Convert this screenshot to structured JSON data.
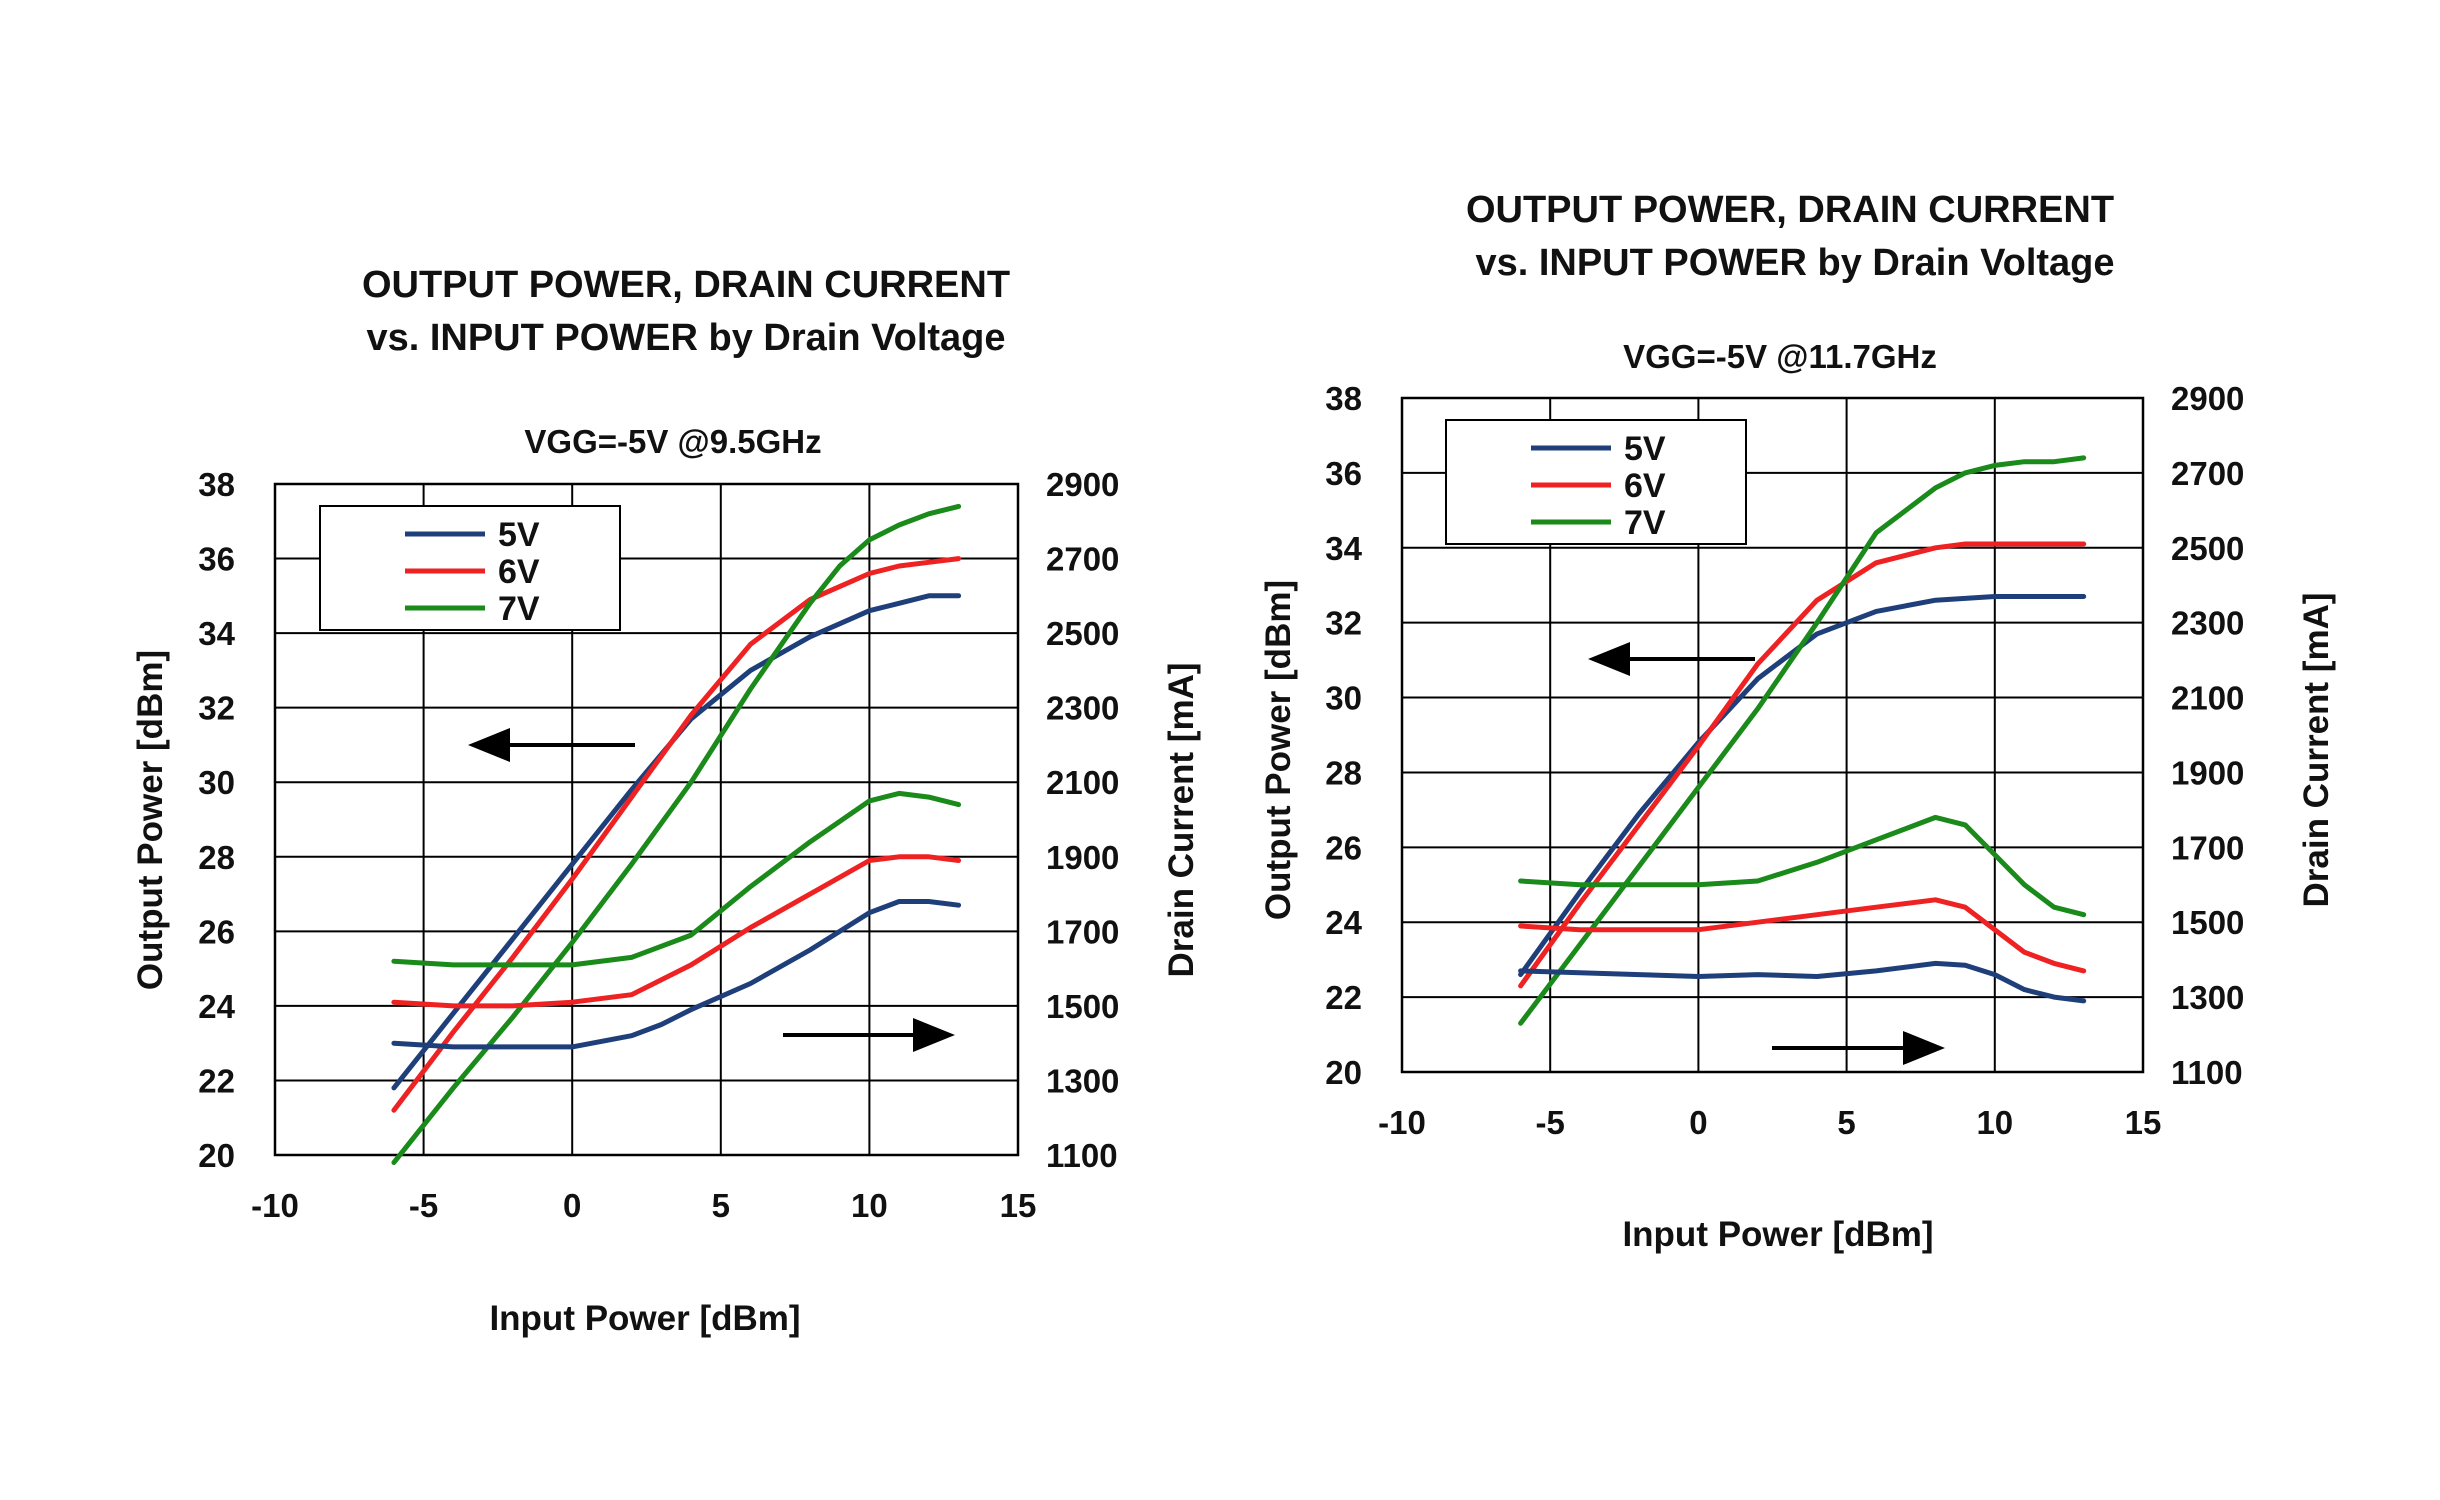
{
  "chart_data": [
    {
      "type": "line",
      "title": "OUTPUT POWER, DRAIN CURRENT",
      "subtitle": "vs. INPUT POWER by Drain Voltage",
      "condition": "VGG=-5V @9.5GHz",
      "xlabel": "Input Power [dBm]",
      "ylabel": "Output Power [dBm]",
      "y2label": "Drain Current [mA]",
      "xlim": [
        -10,
        15
      ],
      "ylim": [
        20,
        38
      ],
      "y2lim": [
        1100,
        2900
      ],
      "xticks": [
        "-10",
        "-5",
        "0",
        "5",
        "10",
        "15"
      ],
      "yticks": [
        "20",
        "22",
        "24",
        "26",
        "28",
        "30",
        "32",
        "34",
        "36",
        "38"
      ],
      "y2ticks": [
        "1100",
        "1300",
        "1500",
        "1700",
        "1900",
        "2100",
        "2300",
        "2500",
        "2700",
        "2900"
      ],
      "grid": true,
      "legend": "top-left",
      "arrows": [
        "left",
        "right"
      ],
      "series": [
        {
          "name": "5V",
          "axis": "left",
          "color": "#1f3f7a",
          "x": [
            -6,
            -4,
            -2,
            0,
            2,
            4,
            6,
            8,
            10,
            11,
            12,
            13
          ],
          "y": [
            21.8,
            23.8,
            25.8,
            27.8,
            29.8,
            31.7,
            33.0,
            33.9,
            34.6,
            34.8,
            35.0,
            35.0
          ]
        },
        {
          "name": "6V",
          "axis": "left",
          "color": "#ee2222",
          "x": [
            -6,
            -4,
            -2,
            0,
            2,
            4,
            6,
            8,
            10,
            11,
            12,
            13
          ],
          "y": [
            21.2,
            23.3,
            25.3,
            27.4,
            29.6,
            31.8,
            33.7,
            34.9,
            35.6,
            35.8,
            35.9,
            36.0
          ]
        },
        {
          "name": "7V",
          "axis": "left",
          "color": "#1a8a1a",
          "x": [
            -6,
            -4,
            -2,
            0,
            2,
            4,
            6,
            8,
            9,
            10,
            11,
            12,
            13
          ],
          "y": [
            19.8,
            21.8,
            23.7,
            25.7,
            27.8,
            30.0,
            32.5,
            34.8,
            35.8,
            36.5,
            36.9,
            37.2,
            37.4
          ]
        },
        {
          "name": "5V",
          "axis": "right",
          "color": "#1f3f7a",
          "x": [
            -6,
            -4,
            -2,
            0,
            2,
            3,
            4,
            6,
            8,
            10,
            11,
            12,
            13
          ],
          "y": [
            1400,
            1390,
            1390,
            1390,
            1420,
            1450,
            1490,
            1560,
            1650,
            1750,
            1780,
            1780,
            1770
          ]
        },
        {
          "name": "6V",
          "axis": "right",
          "color": "#ee2222",
          "x": [
            -6,
            -4,
            -2,
            0,
            2,
            4,
            6,
            8,
            10,
            11,
            12,
            13
          ],
          "y": [
            1510,
            1500,
            1500,
            1510,
            1530,
            1610,
            1710,
            1800,
            1890,
            1900,
            1900,
            1890
          ]
        },
        {
          "name": "7V",
          "axis": "right",
          "color": "#1a8a1a",
          "x": [
            -6,
            -4,
            -2,
            0,
            2,
            4,
            6,
            8,
            10,
            11,
            12,
            13
          ],
          "y": [
            1620,
            1610,
            1610,
            1610,
            1630,
            1690,
            1820,
            1940,
            2050,
            2070,
            2060,
            2040
          ]
        }
      ]
    },
    {
      "type": "line",
      "title": "OUTPUT POWER, DRAIN CURRENT",
      "subtitle": "vs. INPUT POWER by Drain Voltage",
      "condition": "VGG=-5V @11.7GHz",
      "xlabel": "Input Power [dBm]",
      "ylabel": "Output Power [dBm]",
      "y2label": "Drain Current [mA]",
      "xlim": [
        -10,
        15
      ],
      "ylim": [
        20,
        38
      ],
      "y2lim": [
        1100,
        2900
      ],
      "xticks": [
        "-10",
        "-5",
        "0",
        "5",
        "10",
        "15"
      ],
      "yticks": [
        "20",
        "22",
        "24",
        "26",
        "28",
        "30",
        "32",
        "34",
        "36",
        "38"
      ],
      "y2ticks": [
        "1100",
        "1300",
        "1500",
        "1700",
        "1900",
        "2100",
        "2300",
        "2500",
        "2700",
        "2900"
      ],
      "grid": true,
      "legend": "top-left",
      "arrows": [
        "left",
        "right"
      ],
      "series": [
        {
          "name": "5V",
          "axis": "left",
          "color": "#1f3f7a",
          "x": [
            -6,
            -4,
            -2,
            0,
            2,
            4,
            6,
            8,
            10,
            12,
            13
          ],
          "y": [
            22.6,
            24.8,
            26.9,
            28.8,
            30.5,
            31.7,
            32.3,
            32.6,
            32.7,
            32.7,
            32.7
          ]
        },
        {
          "name": "6V",
          "axis": "left",
          "color": "#ee2222",
          "x": [
            -6,
            -4,
            -2,
            0,
            2,
            4,
            6,
            8,
            9,
            10,
            11,
            12,
            13
          ],
          "y": [
            22.3,
            24.5,
            26.6,
            28.7,
            30.9,
            32.6,
            33.6,
            34.0,
            34.1,
            34.1,
            34.1,
            34.1,
            34.1
          ]
        },
        {
          "name": "7V",
          "axis": "left",
          "color": "#1a8a1a",
          "x": [
            -6,
            -4,
            -2,
            0,
            2,
            4,
            6,
            8,
            9,
            10,
            11,
            12,
            13
          ],
          "y": [
            21.3,
            23.4,
            25.5,
            27.6,
            29.7,
            32.0,
            34.4,
            35.6,
            36.0,
            36.2,
            36.3,
            36.3,
            36.4
          ]
        },
        {
          "name": "5V",
          "axis": "right",
          "color": "#1f3f7a",
          "x": [
            -6,
            -4,
            -2,
            0,
            2,
            4,
            6,
            8,
            9,
            10,
            11,
            12,
            13
          ],
          "y": [
            1370,
            1365,
            1360,
            1355,
            1360,
            1355,
            1370,
            1390,
            1385,
            1360,
            1320,
            1300,
            1290
          ]
        },
        {
          "name": "6V",
          "axis": "right",
          "color": "#ee2222",
          "x": [
            -6,
            -4,
            -2,
            0,
            2,
            4,
            6,
            8,
            9,
            10,
            11,
            12,
            13
          ],
          "y": [
            1490,
            1480,
            1480,
            1480,
            1500,
            1520,
            1540,
            1560,
            1540,
            1480,
            1420,
            1390,
            1370
          ]
        },
        {
          "name": "7V",
          "axis": "right",
          "color": "#1a8a1a",
          "x": [
            -6,
            -4,
            -2,
            0,
            2,
            4,
            6,
            8,
            9,
            10,
            11,
            12,
            13
          ],
          "y": [
            1610,
            1600,
            1600,
            1600,
            1610,
            1660,
            1720,
            1780,
            1760,
            1680,
            1600,
            1540,
            1520
          ]
        }
      ]
    }
  ]
}
